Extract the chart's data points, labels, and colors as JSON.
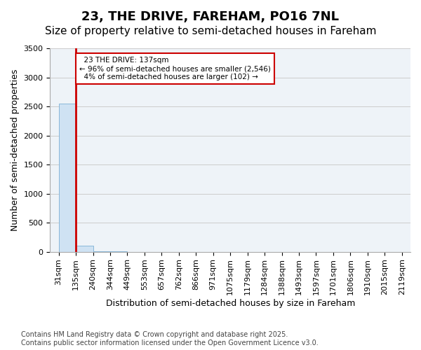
{
  "title": "23, THE DRIVE, FAREHAM, PO16 7NL",
  "subtitle": "Size of property relative to semi-detached houses in Fareham",
  "xlabel": "Distribution of semi-detached houses by size in Fareham",
  "ylabel": "Number of semi-detached properties",
  "bin_labels": [
    "31sqm",
    "135sqm",
    "240sqm",
    "344sqm",
    "449sqm",
    "553sqm",
    "657sqm",
    "762sqm",
    "866sqm",
    "971sqm",
    "1075sqm",
    "1179sqm",
    "1284sqm",
    "1388sqm",
    "1493sqm",
    "1597sqm",
    "1701sqm",
    "1806sqm",
    "1910sqm",
    "2015sqm",
    "2119sqm"
  ],
  "bar_values": [
    2546,
    102,
    8,
    2,
    1,
    0,
    0,
    0,
    0,
    0,
    0,
    0,
    0,
    0,
    0,
    0,
    0,
    0,
    0,
    0
  ],
  "bar_color": "#cfe2f3",
  "bar_edge_color": "#7bafd4",
  "ylim": [
    0,
    3500
  ],
  "yticks": [
    0,
    500,
    1000,
    1500,
    2000,
    2500,
    3000,
    3500
  ],
  "property_label": "23 THE DRIVE: 137sqm",
  "pct_smaller": 96,
  "count_smaller": 2546,
  "pct_larger": 4,
  "count_larger": 102,
  "red_line_color": "#cc0000",
  "annotation_box_color": "#cc0000",
  "footer_line1": "Contains HM Land Registry data © Crown copyright and database right 2025.",
  "footer_line2": "Contains public sector information licensed under the Open Government Licence v3.0.",
  "title_fontsize": 13,
  "subtitle_fontsize": 11,
  "axis_label_fontsize": 9,
  "tick_fontsize": 8,
  "footer_fontsize": 7
}
